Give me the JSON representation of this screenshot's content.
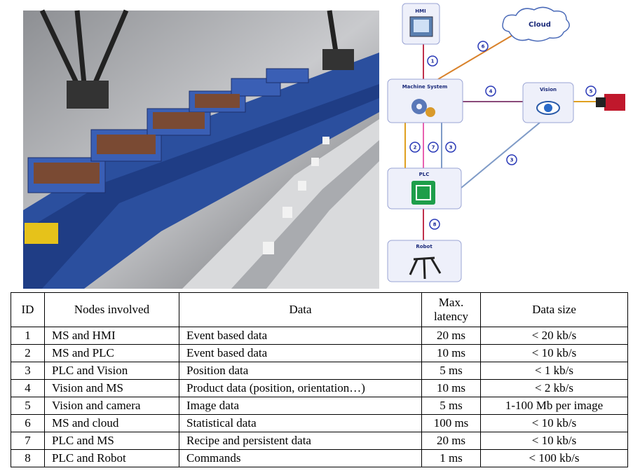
{
  "diagram": {
    "nodes": [
      {
        "label": "HMI"
      },
      {
        "label": "Cloud"
      },
      {
        "label": "Machine System"
      },
      {
        "label": "Vision"
      },
      {
        "label": "PLC"
      },
      {
        "label": "Robot"
      }
    ],
    "edges": [
      {
        "label": "1"
      },
      {
        "label": "6"
      },
      {
        "label": "4"
      },
      {
        "label": "5"
      },
      {
        "label": "3"
      },
      {
        "label": "2"
      },
      {
        "label": "7"
      },
      {
        "label": "3"
      },
      {
        "label": "8"
      }
    ]
  },
  "table": {
    "header": [
      "ID",
      "Nodes involved",
      "Data",
      "Max. latency",
      "Data size"
    ],
    "rows": [
      [
        "1",
        "MS and HMI",
        "Event based data",
        "20 ms",
        "< 20 kb/s"
      ],
      [
        "2",
        "MS and PLC",
        "Event based data",
        "10 ms",
        "< 10 kb/s"
      ],
      [
        "3",
        "PLC and Vision",
        "Position data",
        "5 ms",
        "< 1 kb/s"
      ],
      [
        "4",
        "Vision and MS",
        "Product data (position, orientation…)",
        "10 ms",
        "< 2 kb/s"
      ],
      [
        "5",
        "Vision and camera",
        "Image data",
        "5 ms",
        "1-100 Mb per image"
      ],
      [
        "6",
        "MS and cloud",
        "Statistical data",
        "100 ms",
        "< 10 kb/s"
      ],
      [
        "7",
        "PLC and MS",
        "Recipe and persistent data",
        "20 ms",
        "< 10 kb/s"
      ],
      [
        "8",
        "PLC and Robot",
        "Commands",
        "1 ms",
        "< 100 kb/s"
      ]
    ]
  }
}
